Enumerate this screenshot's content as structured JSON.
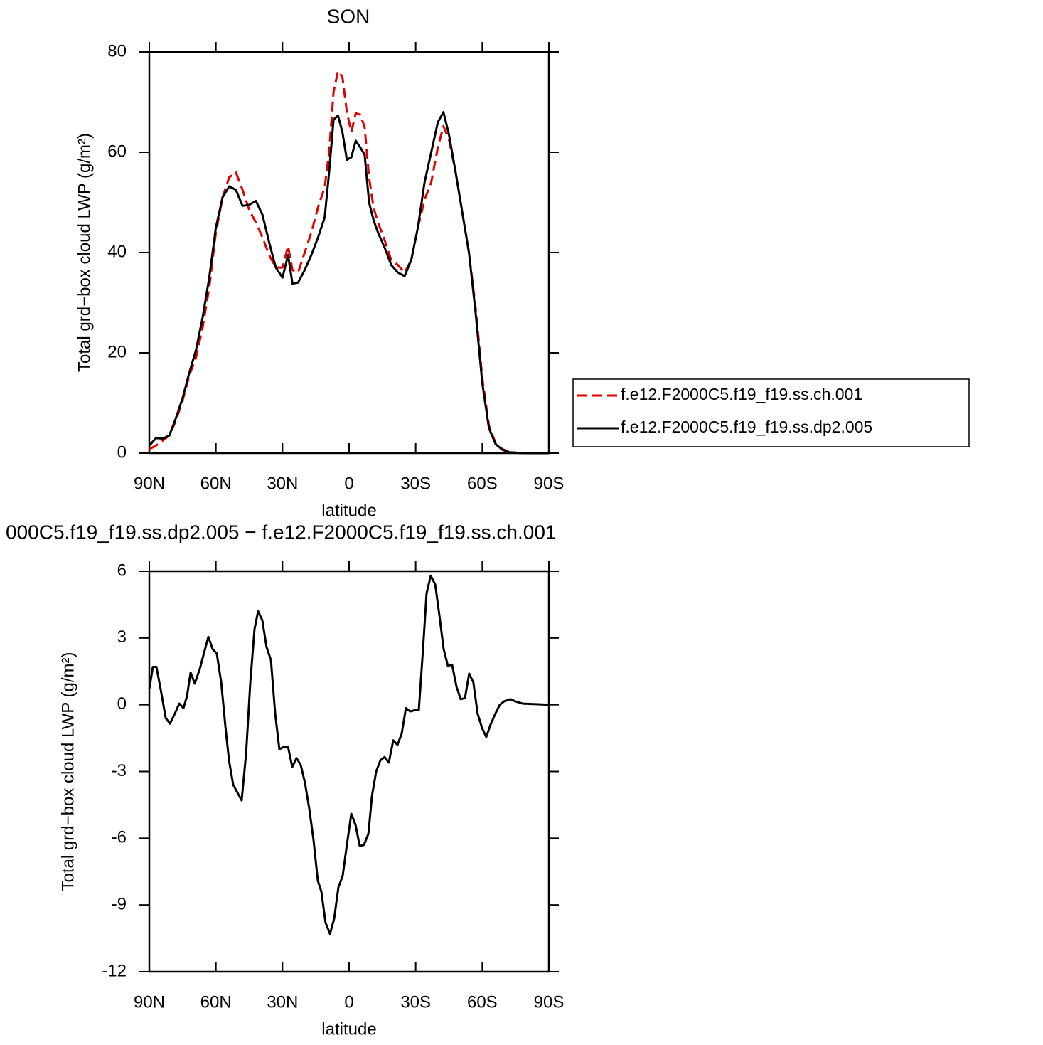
{
  "chart_data": [
    {
      "type": "line",
      "title": "SON",
      "xlabel": "latitude",
      "ylabel": "Total grd−box cloud LWP (g/m²)",
      "xlim": [
        90,
        -90
      ],
      "ylim": [
        0,
        80
      ],
      "xticks": [
        {
          "value": 90,
          "label": "90N"
        },
        {
          "value": 60,
          "label": "60N"
        },
        {
          "value": 30,
          "label": "30N"
        },
        0,
        {
          "value": -30,
          "label": "30S"
        },
        {
          "value": -60,
          "label": "60S"
        },
        {
          "value": -90,
          "label": "90S"
        }
      ],
      "yticks": [
        0,
        20,
        40,
        60,
        80
      ],
      "legend": "right",
      "x": [
        90,
        87,
        84,
        81,
        78,
        75,
        72,
        69,
        66,
        63,
        60,
        57,
        54,
        51,
        48,
        45,
        42,
        39,
        36,
        33,
        30,
        27.5,
        25.5,
        23,
        20,
        17,
        14,
        11,
        9,
        7,
        5,
        3,
        1,
        -1,
        -3,
        -5,
        -7,
        -9,
        -11,
        -13,
        -16,
        -19,
        -22,
        -25,
        -28,
        -31,
        -34,
        -37,
        -40,
        -42.5,
        -45,
        -48,
        -51,
        -54,
        -57,
        -60,
        -63,
        -66,
        -69,
        -72,
        -76,
        -80,
        -85,
        -90
      ],
      "series": [
        {
          "name": "f.e12.F2000C5.f19_f19.ss.ch.001",
          "color": "#e00000",
          "dash": true,
          "values": [
            0.8,
            1.5,
            2.5,
            3.5,
            6.5,
            10.5,
            15.5,
            19,
            25,
            33,
            44,
            51,
            55,
            56,
            52.5,
            48.5,
            46,
            43,
            39.5,
            37,
            37,
            41.3,
            36.5,
            36,
            40,
            44,
            49,
            53,
            60,
            72,
            76.2,
            75,
            68,
            64,
            67.8,
            67.5,
            65,
            55,
            49,
            46,
            42.5,
            38.5,
            37.5,
            36,
            38.5,
            45,
            50.5,
            54,
            61,
            65.2,
            62.5,
            56,
            48,
            40,
            29,
            15,
            5.5,
            2,
            0.8,
            0.3,
            0.05,
            0,
            0,
            0
          ]
        },
        {
          "name": "f.e12.F2000C5.f19_f19.ss.dp2.005",
          "color": "#000000",
          "dash": false,
          "values": [
            1.5,
            3.0,
            2.9,
            3.5,
            7,
            11,
            16,
            20.5,
            27,
            35,
            45,
            51,
            53.2,
            52.5,
            49.3,
            49.5,
            50.3,
            47.5,
            42,
            37,
            35,
            39.5,
            33.8,
            34,
            36.5,
            39.5,
            43,
            47,
            56,
            66.5,
            67.3,
            64,
            58.5,
            59,
            62.3,
            61,
            59.5,
            50,
            46.5,
            44,
            41,
            37.5,
            36,
            35.3,
            38.5,
            45,
            54,
            60,
            66,
            68,
            63.5,
            56,
            48,
            40,
            28,
            14,
            5,
            1.8,
            0.7,
            0.2,
            0.05,
            0,
            0,
            0
          ]
        }
      ]
    },
    {
      "type": "line",
      "title": "000C5.f19_f19.ss.dp2.005 − f.e12.F2000C5.f19_f19.ss.ch.001",
      "xlabel": "latitude",
      "ylabel": "Total grd−box cloud LWP (g/m²)",
      "xlim": [
        90,
        -90
      ],
      "ylim": [
        -12,
        6
      ],
      "xticks": [
        {
          "value": 90,
          "label": "90N"
        },
        {
          "value": 60,
          "label": "60N"
        },
        {
          "value": 30,
          "label": "30N"
        },
        0,
        {
          "value": -30,
          "label": "30S"
        },
        {
          "value": -60,
          "label": "60S"
        },
        {
          "value": -90,
          "label": "90S"
        }
      ],
      "yticks": [
        -12,
        -9,
        -6,
        -3,
        0,
        3,
        6
      ],
      "x": [
        90,
        88.4,
        86.8,
        84.9,
        82.6,
        80.7,
        78.5,
        76.5,
        74.6,
        73,
        71.4,
        69.5,
        67.3,
        63.4,
        61.5,
        59.6,
        57.6,
        55.7,
        54.1,
        52.2,
        48.4,
        46.4,
        44.5,
        42.6,
        41,
        39.1,
        37.2,
        35.2,
        33.3,
        31.4,
        29.5,
        27.5,
        25.6,
        23.7,
        21.8,
        19.9,
        17.9,
        16,
        14.1,
        12.5,
        10.6,
        8.6,
        6.7,
        4.8,
        2.9,
        1,
        -1,
        -2.9,
        -4.8,
        -6.7,
        -8.7,
        -10.3,
        -12.2,
        -14.1,
        -16,
        -17.9,
        -19.9,
        -21.8,
        -23.7,
        -25.6,
        -27.5,
        -29.5,
        -31.4,
        -33.3,
        -34.9,
        -36.8,
        -38.8,
        -40.7,
        -42.6,
        -44.5,
        -46.4,
        -48.4,
        -50.3,
        -52.2,
        -54.1,
        -56,
        -57.9,
        -59.9,
        -61.8,
        -63.7,
        -65.9,
        -67.9,
        -69.8,
        -72.7,
        -74.9,
        -78.2,
        -90
      ],
      "series": [
        {
          "color": "#000000",
          "dash": false,
          "values": [
            0.7,
            1.7,
            1.7,
            0.7,
            -0.6,
            -0.85,
            -0.4,
            0.05,
            -0.15,
            0.4,
            1.45,
            0.95,
            1.6,
            3.05,
            2.5,
            2.3,
            1.0,
            -1.0,
            -2.5,
            -3.6,
            -4.3,
            -2.2,
            1.0,
            3.4,
            4.2,
            3.8,
            2.6,
            2.0,
            -0.4,
            -2.0,
            -1.9,
            -1.9,
            -2.8,
            -2.4,
            -2.7,
            -3.5,
            -4.7,
            -6.1,
            -7.9,
            -8.4,
            -9.8,
            -10.3,
            -9.6,
            -8.2,
            -7.7,
            -6.3,
            -4.9,
            -5.4,
            -6.35,
            -6.3,
            -5.8,
            -4.1,
            -3.0,
            -2.5,
            -2.35,
            -2.6,
            -1.6,
            -1.8,
            -1.3,
            -0.15,
            -0.3,
            -0.25,
            -0.25,
            2.5,
            5.0,
            5.8,
            5.4,
            4.0,
            2.5,
            1.75,
            1.8,
            0.8,
            0.25,
            0.3,
            1.4,
            1.0,
            -0.4,
            -1.05,
            -1.45,
            -0.9,
            -0.4,
            0.0,
            0.15,
            0.25,
            0.15,
            0.05,
            0
          ]
        }
      ]
    }
  ]
}
